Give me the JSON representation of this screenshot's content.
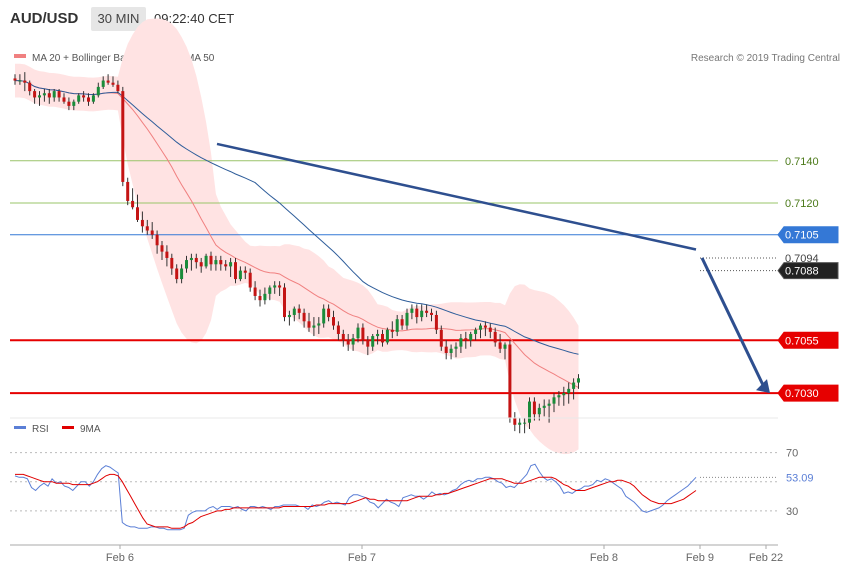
{
  "header": {
    "symbol": "AUD/USD",
    "timeframe": "30 MIN",
    "time": "09:22:40 CET"
  },
  "legend": [
    {
      "label": "MA 20 + Bollinger Bands",
      "color": "#f08080"
    },
    {
      "label": "MA 50",
      "color": "#2e5d9a"
    }
  ],
  "credit": "Research © 2019 Trading Central",
  "colors": {
    "up_candle": "#1a8c3a",
    "down_candle": "#c41414",
    "bollinger_fill": "#ffe3e3",
    "ma20": "#f08080",
    "ma50": "#2e5d9a",
    "trendline": "#2e4f8f",
    "support": "#e60000",
    "resistance": "#9ac46a",
    "pivot": "#3478d6",
    "rsi": "#5b7fd6",
    "rsi_ma": "#e00000",
    "price_tag": "#222222"
  },
  "chart_data": [
    {
      "type": "candlestick",
      "title": "AUD/USD 30 MIN",
      "ylim": [
        0.7022,
        0.7183
      ],
      "x_labels": [
        "Feb 6",
        "Feb 7",
        "Feb 8",
        "Feb 9",
        "Feb 22"
      ],
      "levels": [
        {
          "label": "0.7140",
          "value": 0.714,
          "kind": "resistance"
        },
        {
          "label": "0.7120",
          "value": 0.712,
          "kind": "resistance"
        },
        {
          "label": "0.7105",
          "value": 0.7105,
          "kind": "pivot"
        },
        {
          "label": "0.7094",
          "value": 0.7094,
          "kind": "dotted"
        },
        {
          "label": "0.7088",
          "value": 0.7088,
          "kind": "current"
        },
        {
          "label": "0.7055",
          "value": 0.7055,
          "kind": "support"
        },
        {
          "label": "0.7030",
          "value": 0.703,
          "kind": "support"
        }
      ],
      "trendline": [
        [
          0.7148,
          0.7098
        ]
      ],
      "projection": [
        0.7094,
        0.703
      ],
      "candles": [
        [
          0.7179,
          0.7181,
          0.7176,
          0.7178
        ],
        [
          0.7178,
          0.7181,
          0.7176,
          0.7178
        ],
        [
          0.7178,
          0.7182,
          0.7173,
          0.7177
        ],
        [
          0.7177,
          0.7178,
          0.7171,
          0.7173
        ],
        [
          0.7173,
          0.7174,
          0.7167,
          0.717
        ],
        [
          0.717,
          0.7173,
          0.7166,
          0.7171
        ],
        [
          0.7171,
          0.7174,
          0.7168,
          0.7172
        ],
        [
          0.7172,
          0.7174,
          0.7167,
          0.717
        ],
        [
          0.717,
          0.7174,
          0.7168,
          0.7173
        ],
        [
          0.7173,
          0.7174,
          0.7168,
          0.717
        ],
        [
          0.717,
          0.7172,
          0.7167,
          0.7168
        ],
        [
          0.7168,
          0.717,
          0.7164,
          0.7166
        ],
        [
          0.7166,
          0.7169,
          0.7164,
          0.7168
        ],
        [
          0.7168,
          0.7172,
          0.7167,
          0.7171
        ],
        [
          0.7171,
          0.7173,
          0.7168,
          0.717
        ],
        [
          0.717,
          0.7172,
          0.7166,
          0.7168
        ],
        [
          0.7168,
          0.7172,
          0.7167,
          0.7171
        ],
        [
          0.7171,
          0.7177,
          0.717,
          0.7175
        ],
        [
          0.7175,
          0.718,
          0.7174,
          0.7178
        ],
        [
          0.7178,
          0.7181,
          0.7176,
          0.7177
        ],
        [
          0.7177,
          0.718,
          0.7175,
          0.7176
        ],
        [
          0.7176,
          0.7178,
          0.7172,
          0.7173
        ],
        [
          0.7173,
          0.7175,
          0.7128,
          0.713
        ],
        [
          0.713,
          0.7132,
          0.7119,
          0.7121
        ],
        [
          0.7121,
          0.7127,
          0.7117,
          0.7118
        ],
        [
          0.7118,
          0.7124,
          0.7111,
          0.7112
        ],
        [
          0.7112,
          0.7116,
          0.7106,
          0.7109
        ],
        [
          0.7109,
          0.7112,
          0.7105,
          0.7107
        ],
        [
          0.7107,
          0.7111,
          0.7103,
          0.7105
        ],
        [
          0.7105,
          0.7107,
          0.7096,
          0.71
        ],
        [
          0.71,
          0.7102,
          0.7093,
          0.7097
        ],
        [
          0.7097,
          0.71,
          0.709,
          0.7094
        ],
        [
          0.7094,
          0.7096,
          0.7086,
          0.7089
        ],
        [
          0.7089,
          0.7091,
          0.7082,
          0.7084
        ],
        [
          0.7084,
          0.7091,
          0.7082,
          0.7089
        ],
        [
          0.7089,
          0.7095,
          0.7087,
          0.7093
        ],
        [
          0.7093,
          0.7096,
          0.7088,
          0.7094
        ],
        [
          0.7094,
          0.7096,
          0.7089,
          0.7092
        ],
        [
          0.7092,
          0.7094,
          0.7087,
          0.709
        ],
        [
          0.709,
          0.7096,
          0.7089,
          0.7095
        ],
        [
          0.7095,
          0.7097,
          0.7088,
          0.7091
        ],
        [
          0.7091,
          0.7095,
          0.7088,
          0.7093
        ],
        [
          0.7093,
          0.7095,
          0.7088,
          0.7091
        ],
        [
          0.7091,
          0.7093,
          0.7088,
          0.709
        ],
        [
          0.709,
          0.7094,
          0.7085,
          0.7092
        ],
        [
          0.7092,
          0.7094,
          0.7082,
          0.7084
        ],
        [
          0.7084,
          0.709,
          0.7083,
          0.7088
        ],
        [
          0.7088,
          0.709,
          0.7084,
          0.7087
        ],
        [
          0.7087,
          0.7089,
          0.7078,
          0.708
        ],
        [
          0.708,
          0.7083,
          0.7074,
          0.7076
        ],
        [
          0.7076,
          0.7079,
          0.7071,
          0.7074
        ],
        [
          0.7074,
          0.708,
          0.7072,
          0.7077
        ],
        [
          0.7077,
          0.7081,
          0.7074,
          0.708
        ],
        [
          0.708,
          0.7083,
          0.7077,
          0.7081
        ],
        [
          0.7081,
          0.7083,
          0.7076,
          0.708
        ],
        [
          0.708,
          0.7082,
          0.7064,
          0.7066
        ],
        [
          0.7066,
          0.7069,
          0.7062,
          0.7067
        ],
        [
          0.7067,
          0.7071,
          0.7064,
          0.707
        ],
        [
          0.707,
          0.7072,
          0.7065,
          0.7068
        ],
        [
          0.7068,
          0.707,
          0.7061,
          0.7064
        ],
        [
          0.7064,
          0.7068,
          0.7059,
          0.7061
        ],
        [
          0.7061,
          0.7066,
          0.7057,
          0.7062
        ],
        [
          0.7062,
          0.7066,
          0.7058,
          0.7063
        ],
        [
          0.7063,
          0.7072,
          0.7061,
          0.707
        ],
        [
          0.707,
          0.7072,
          0.7064,
          0.7066
        ],
        [
          0.7066,
          0.7069,
          0.706,
          0.7062
        ],
        [
          0.7062,
          0.7064,
          0.7055,
          0.7058
        ],
        [
          0.7058,
          0.706,
          0.7052,
          0.7055
        ],
        [
          0.7055,
          0.7058,
          0.705,
          0.7053
        ],
        [
          0.7053,
          0.7058,
          0.705,
          0.7056
        ],
        [
          0.7056,
          0.7063,
          0.7054,
          0.7061
        ],
        [
          0.7061,
          0.7063,
          0.7053,
          0.7055
        ],
        [
          0.7055,
          0.7057,
          0.7048,
          0.7052
        ],
        [
          0.7052,
          0.7058,
          0.705,
          0.7057
        ],
        [
          0.7057,
          0.706,
          0.7053,
          0.7058
        ],
        [
          0.7058,
          0.706,
          0.7052,
          0.7054
        ],
        [
          0.7054,
          0.7061,
          0.7053,
          0.706
        ],
        [
          0.706,
          0.7064,
          0.7056,
          0.7059
        ],
        [
          0.7059,
          0.7067,
          0.7057,
          0.7065
        ],
        [
          0.7065,
          0.7067,
          0.706,
          0.7062
        ],
        [
          0.7062,
          0.707,
          0.706,
          0.7068
        ],
        [
          0.7068,
          0.7072,
          0.7065,
          0.707
        ],
        [
          0.707,
          0.7072,
          0.7063,
          0.7066
        ],
        [
          0.7066,
          0.7072,
          0.7064,
          0.7069
        ],
        [
          0.7069,
          0.7072,
          0.7066,
          0.7068
        ],
        [
          0.7068,
          0.707,
          0.7064,
          0.7067
        ],
        [
          0.7067,
          0.7069,
          0.7058,
          0.706
        ],
        [
          0.706,
          0.7062,
          0.705,
          0.7052
        ],
        [
          0.7052,
          0.7055,
          0.7046,
          0.7049
        ],
        [
          0.7049,
          0.7053,
          0.7046,
          0.7051
        ],
        [
          0.7051,
          0.7054,
          0.7047,
          0.7052
        ],
        [
          0.7052,
          0.7058,
          0.7049,
          0.7056
        ],
        [
          0.7056,
          0.7059,
          0.7051,
          0.7055
        ],
        [
          0.7055,
          0.7059,
          0.7052,
          0.7058
        ],
        [
          0.7058,
          0.7061,
          0.7055,
          0.706
        ],
        [
          0.706,
          0.7063,
          0.7056,
          0.7062
        ],
        [
          0.7062,
          0.7064,
          0.7057,
          0.7061
        ],
        [
          0.7061,
          0.7063,
          0.7056,
          0.7059
        ],
        [
          0.7059,
          0.7061,
          0.7052,
          0.7054
        ],
        [
          0.7054,
          0.7058,
          0.7049,
          0.7051
        ],
        [
          0.7051,
          0.7054,
          0.7046,
          0.7053
        ],
        [
          0.7053,
          0.7055,
          0.7016,
          0.7018
        ],
        [
          0.7018,
          0.7021,
          0.7012,
          0.7015
        ],
        [
          0.7015,
          0.7018,
          0.7011,
          0.7016
        ],
        [
          0.7016,
          0.7018,
          0.7011,
          0.7016
        ],
        [
          0.7016,
          0.7028,
          0.7013,
          0.7026
        ],
        [
          0.7026,
          0.7028,
          0.7017,
          0.702
        ],
        [
          0.702,
          0.7025,
          0.7017,
          0.7023
        ],
        [
          0.7023,
          0.7027,
          0.7019,
          0.7024
        ],
        [
          0.7024,
          0.7027,
          0.7016,
          0.7025
        ],
        [
          0.7025,
          0.703,
          0.7021,
          0.7028
        ],
        [
          0.7028,
          0.7031,
          0.7024,
          0.7029
        ],
        [
          0.7029,
          0.7033,
          0.7024,
          0.703
        ],
        [
          0.703,
          0.7035,
          0.7025,
          0.7032
        ],
        [
          0.7032,
          0.7037,
          0.7027,
          0.7035
        ],
        [
          0.7035,
          0.7039,
          0.7032,
          0.7037
        ]
      ]
    },
    {
      "type": "line",
      "title": "RSI",
      "ylim": [
        10,
        80
      ],
      "y_ticks": [
        30,
        50,
        70
      ],
      "current_label": "53.09",
      "series": [
        {
          "name": "RSI",
          "values": [
            54,
            53,
            53,
            52,
            46,
            44,
            47,
            49,
            47,
            52,
            49,
            50,
            47,
            46,
            44,
            47,
            50,
            50,
            47,
            50,
            55,
            59,
            61,
            60,
            58,
            56,
            22,
            20,
            19,
            19,
            18,
            18,
            18,
            19,
            19,
            18,
            18,
            17,
            17,
            17,
            17,
            18,
            27,
            29,
            30,
            30,
            30,
            32,
            33,
            31,
            33,
            33,
            33,
            32,
            33,
            31,
            30,
            33,
            33,
            32,
            33,
            32,
            31,
            33,
            33,
            34,
            34,
            34,
            34,
            33,
            33,
            31,
            34,
            33,
            34,
            36,
            37,
            35,
            36,
            35,
            34,
            39,
            41,
            41,
            40,
            39,
            36,
            35,
            32,
            35,
            38,
            36,
            35,
            33,
            39,
            40,
            41,
            40,
            40,
            38,
            40,
            43,
            41,
            42,
            41,
            42,
            44,
            45,
            48,
            50,
            51,
            50,
            52,
            52,
            53,
            53,
            52,
            50,
            49,
            46,
            47,
            46,
            49,
            52,
            55,
            61,
            62,
            57,
            53,
            51,
            52,
            50,
            47,
            42,
            43,
            42,
            44,
            45,
            47,
            47,
            48,
            51,
            50,
            52,
            51,
            49,
            47,
            45,
            40,
            38,
            36,
            33,
            30,
            29,
            30,
            31,
            32,
            34,
            37,
            39,
            41,
            43,
            45,
            47,
            50,
            53
          ]
        },
        {
          "name": "9MA",
          "values": [
            55,
            55,
            55,
            54,
            53,
            52,
            51,
            50,
            50,
            50,
            49,
            49,
            49,
            49,
            48,
            48,
            48,
            48,
            48,
            49,
            50,
            52,
            54,
            55,
            55,
            54,
            50,
            45,
            40,
            35,
            30,
            25,
            21,
            20,
            19,
            19,
            19,
            19,
            18,
            18,
            18,
            19,
            21,
            22,
            24,
            26,
            27,
            28,
            29,
            30,
            30,
            31,
            31,
            32,
            32,
            32,
            32,
            32,
            32,
            32,
            32,
            32,
            32,
            32,
            32,
            33,
            33,
            33,
            33,
            33,
            33,
            33,
            33,
            34,
            34,
            34,
            35,
            35,
            35,
            35,
            35,
            35,
            36,
            37,
            38,
            39,
            38,
            38,
            37,
            37,
            37,
            37,
            37,
            37,
            37,
            37,
            38,
            39,
            40,
            40,
            40,
            40,
            41,
            41,
            42,
            42,
            43,
            44,
            45,
            46,
            47,
            48,
            49,
            50,
            51,
            52,
            52,
            52,
            52,
            51,
            50,
            49,
            49,
            49,
            50,
            51,
            52,
            53,
            53,
            53,
            53,
            52,
            50,
            48,
            47,
            45,
            44,
            44,
            44,
            45,
            46,
            47,
            48,
            49,
            50,
            50,
            51,
            51,
            50,
            49,
            47,
            44,
            41,
            39,
            37,
            36,
            35,
            35,
            35,
            35,
            36,
            37,
            38,
            40,
            42,
            44
          ]
        }
      ]
    }
  ]
}
